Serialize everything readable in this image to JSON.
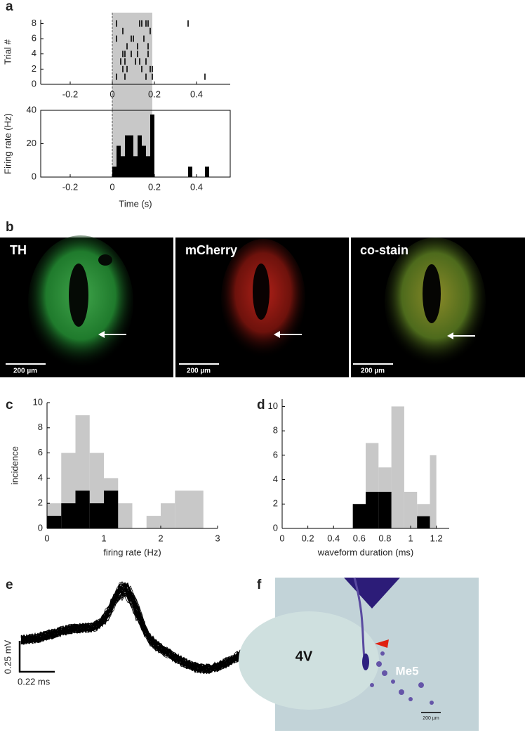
{
  "panel_labels": [
    "a",
    "b",
    "c",
    "d",
    "e",
    "f"
  ],
  "chart_data": [
    {
      "type": "raster",
      "ylabel": "Trial #",
      "xlim": [
        -0.34,
        0.56
      ],
      "xticks": [
        -0.2,
        0,
        0.2,
        0.4
      ],
      "ylim": [
        0,
        8.5
      ],
      "yticks": [
        0,
        2,
        4,
        6,
        8
      ],
      "stimulus": [
        0,
        0.19
      ],
      "color": "#000000",
      "trials": [
        [
          0.02,
          0.06,
          0.16,
          0.19,
          0.44
        ],
        [
          0.05,
          0.07,
          0.14,
          0.18,
          0.19
        ],
        [
          0.04,
          0.06,
          0.11,
          0.13,
          0.16
        ],
        [
          0.05,
          0.06,
          0.09,
          0.12,
          0.17
        ],
        [
          0.07,
          0.12,
          0.17
        ],
        [
          0.02,
          0.09,
          0.1,
          0.15
        ],
        [
          0.05,
          0.18
        ],
        [
          0.02,
          0.13,
          0.14,
          0.16,
          0.17,
          0.36
        ]
      ]
    },
    {
      "type": "histogram",
      "xlabel": "Time (s)",
      "ylabel": "Firing rate (Hz)",
      "xlim": [
        -0.34,
        0.56
      ],
      "xticks": [
        -0.2,
        0,
        0.2,
        0.4
      ],
      "ylim": [
        0,
        40
      ],
      "yticks": [
        0,
        20,
        40
      ],
      "box": true,
      "stimulus": [
        0,
        0.19
      ],
      "bins": [
        0,
        0.02,
        0.04,
        0.06,
        0.08,
        0.1,
        0.12,
        0.14,
        0.16,
        0.18,
        0.2,
        0.22,
        0.24,
        0.26,
        0.28,
        0.3,
        0.32,
        0.34,
        0.36,
        0.38,
        0.4,
        0.42,
        0.44,
        0.46
      ],
      "series": [
        {
          "color": "#000000",
          "values": [
            6.25,
            18.75,
            12.5,
            25,
            25,
            12.5,
            25,
            18.75,
            12.5,
            37.5,
            0,
            0,
            0,
            0,
            0,
            0,
            0,
            0,
            6.25,
            0,
            0,
            0,
            6.25
          ]
        }
      ]
    },
    {
      "type": "histogram",
      "xlabel": "firing rate (Hz)",
      "ylabel": "incidence",
      "xlim": [
        0,
        3
      ],
      "xticks": [
        0,
        1,
        2,
        3
      ],
      "ylim": [
        0,
        10
      ],
      "yticks": [
        0,
        2,
        4,
        6,
        8,
        10
      ],
      "box": false,
      "bins": [
        0,
        0.25,
        0.5,
        0.75,
        1,
        1.25,
        1.5,
        1.75,
        2,
        2.25,
        2.5,
        2.75
      ],
      "series": [
        {
          "color": "#c8c8c8",
          "values": [
            2,
            6,
            9,
            6,
            4,
            2,
            0,
            1,
            2,
            3,
            3
          ]
        },
        {
          "color": "#000000",
          "values": [
            1,
            2,
            3,
            2,
            3,
            0,
            0,
            0,
            0,
            0,
            0
          ]
        }
      ]
    },
    {
      "type": "histogram",
      "xlabel": "waveform duration (ms)",
      "ylabel": "",
      "xlim": [
        0,
        1.3
      ],
      "xticks": [
        0,
        0.2,
        0.4,
        0.6,
        0.8,
        1,
        1.2
      ],
      "ylim": [
        0,
        10.6
      ],
      "yticks": [
        0,
        2,
        4,
        6,
        8,
        10
      ],
      "box": false,
      "bins": [
        0.55,
        0.65,
        0.75,
        0.85,
        0.95,
        1.05,
        1.15,
        1.2
      ],
      "series": [
        {
          "color": "#c8c8c8",
          "values": [
            2,
            7,
            5,
            10,
            3,
            2,
            6
          ]
        },
        {
          "color": "#000000",
          "values": [
            2,
            3,
            3,
            0,
            0,
            1,
            0
          ]
        }
      ]
    }
  ],
  "micrographs": [
    {
      "label": "TH",
      "scale": "200 µm"
    },
    {
      "label": "mCherry",
      "scale": "200 µm"
    },
    {
      "label": "co-stain",
      "scale": "200 µm"
    }
  ],
  "waveform": {
    "scale_y": "0.25 mV",
    "scale_x": "0.22 ms"
  },
  "histology": {
    "labels": [
      "4V",
      "Me5"
    ],
    "scale": "200 µm"
  }
}
